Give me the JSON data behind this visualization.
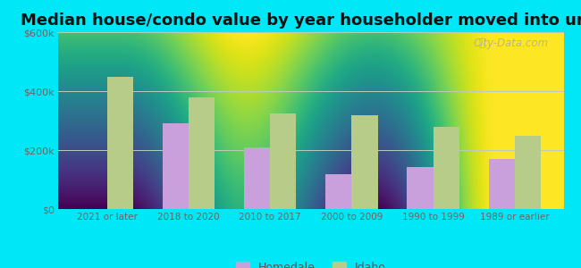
{
  "title": "Median house/condo value by year householder moved into unit",
  "categories": [
    "2021 or later",
    "2018 to 2020",
    "2010 to 2017",
    "2000 to 2009",
    "1990 to 1999",
    "1989 or earlier"
  ],
  "homedale_values": [
    0,
    290000,
    210000,
    118000,
    143000,
    170000
  ],
  "idaho_values": [
    450000,
    380000,
    325000,
    318000,
    278000,
    250000
  ],
  "homedale_color": "#c9a0dc",
  "idaho_color": "#b8cc8a",
  "ylim": [
    0,
    600000
  ],
  "yticks": [
    0,
    200000,
    400000,
    600000
  ],
  "ytick_labels": [
    "$0",
    "$200k",
    "$400k",
    "$600k"
  ],
  "bg_top_color": "#f0fff0",
  "bg_bottom_color": "#d0eecc",
  "outer_background": "#00e8f8",
  "watermark": "City-Data.com",
  "legend_labels": [
    "Homedale",
    "Idaho"
  ],
  "bar_width": 0.32,
  "title_fontsize": 13
}
